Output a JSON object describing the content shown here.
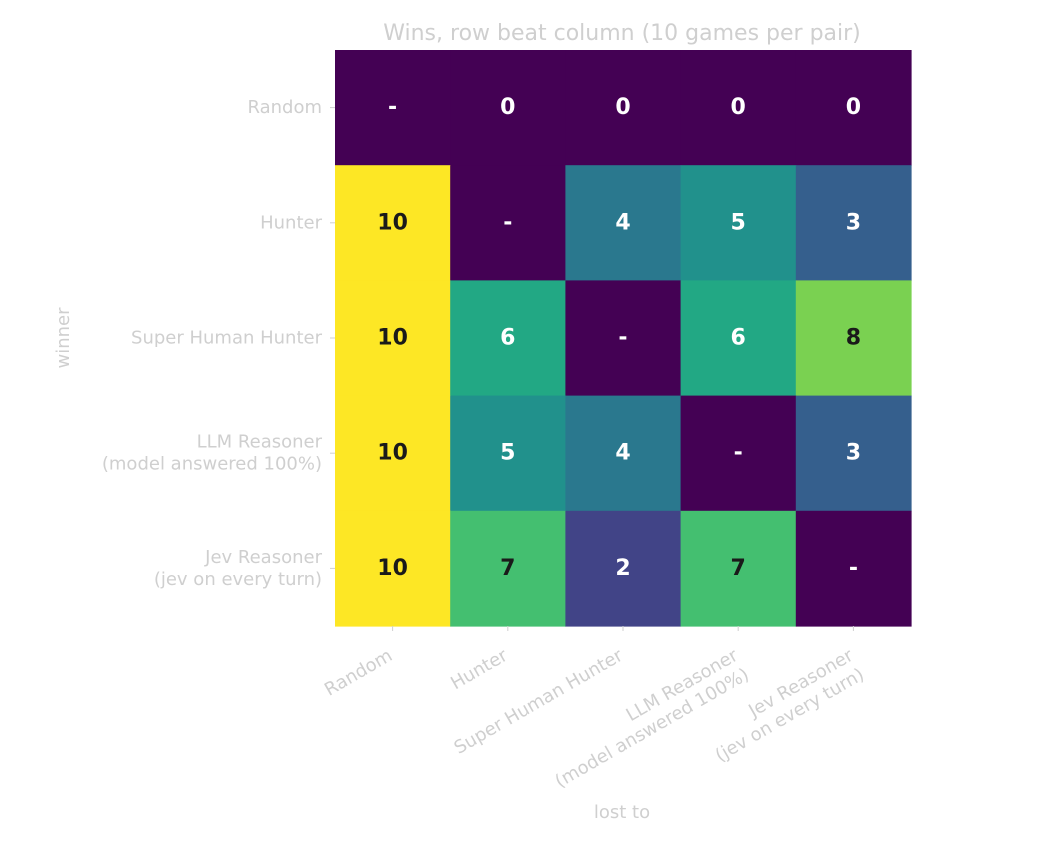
{
  "chart_data": {
    "type": "heatmap",
    "title": "Wins, row beat column (10 games per pair)",
    "xlabel": "lost to",
    "ylabel": "winner",
    "rows": [
      [
        "Random"
      ],
      [
        "Hunter"
      ],
      [
        "Super Human Hunter"
      ],
      [
        "LLM Reasoner",
        "(model answered 100%)"
      ],
      [
        "Jev Reasoner",
        "(jev on every turn)"
      ]
    ],
    "cols": [
      [
        "Random"
      ],
      [
        "Hunter"
      ],
      [
        "Super Human Hunter"
      ],
      [
        "LLM Reasoner",
        "(model answered 100%)"
      ],
      [
        "Jev Reasoner",
        "(jev on every turn)"
      ]
    ],
    "values": [
      [
        null,
        0,
        0,
        0,
        0
      ],
      [
        10,
        null,
        4,
        5,
        3
      ],
      [
        10,
        6,
        null,
        6,
        8
      ],
      [
        10,
        5,
        4,
        null,
        3
      ],
      [
        10,
        7,
        2,
        7,
        null
      ]
    ],
    "diagonal_label": "-",
    "vmin": 0,
    "vmax": 10,
    "colormap": "viridis"
  }
}
